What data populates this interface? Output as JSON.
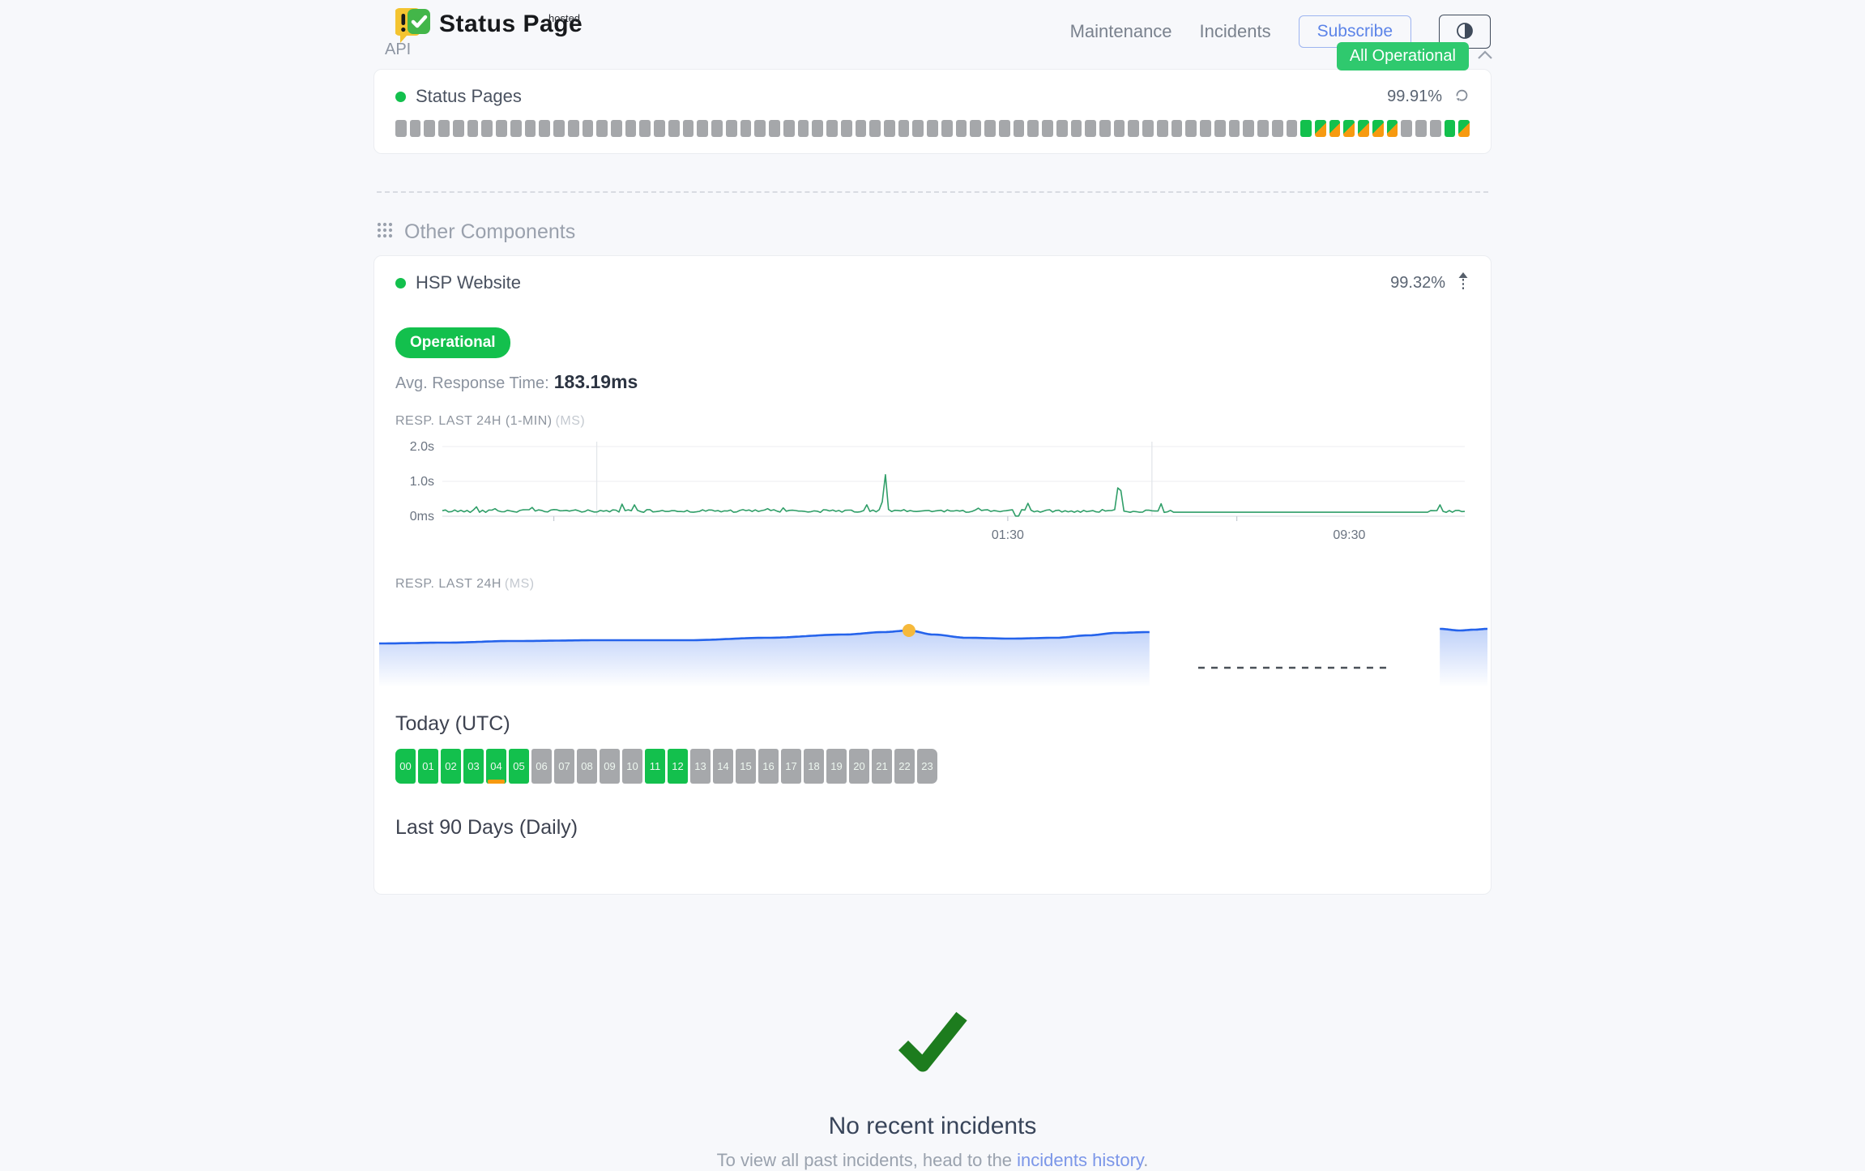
{
  "header": {
    "logo_title": "Status Page",
    "logo_superscript": "hosted",
    "nav": [
      {
        "label": "Maintenance"
      },
      {
        "label": "Incidents"
      }
    ],
    "subscribe_label": "Subscribe",
    "status_badge": "All Operational"
  },
  "status_legend": {
    "u": "operational",
    "d": "degraded",
    "n": "no-data"
  },
  "api_section": {
    "title": "API",
    "component": {
      "name": "Status Pages",
      "uptime": "99.91%",
      "bars": [
        "n",
        "n",
        "n",
        "n",
        "n",
        "n",
        "n",
        "n",
        "n",
        "n",
        "n",
        "n",
        "n",
        "n",
        "n",
        "n",
        "n",
        "n",
        "n",
        "n",
        "n",
        "n",
        "n",
        "n",
        "n",
        "n",
        "n",
        "n",
        "n",
        "n",
        "n",
        "n",
        "n",
        "n",
        "n",
        "n",
        "n",
        "n",
        "n",
        "n",
        "n",
        "n",
        "n",
        "n",
        "n",
        "n",
        "n",
        "n",
        "n",
        "n",
        "n",
        "n",
        "n",
        "n",
        "n",
        "n",
        "n",
        "n",
        "n",
        "n",
        "n",
        "n",
        "n",
        "u",
        "d",
        "d",
        "d",
        "d",
        "d",
        "d",
        "n",
        "n",
        "n",
        "u",
        "d"
      ]
    }
  },
  "other_components": {
    "title": "Other Components",
    "component": {
      "name": "HSP Website",
      "uptime": "99.32%",
      "status_pill": "Operational",
      "avg_response_label": "Avg. Response Time:",
      "avg_response_value": "183.19ms",
      "chart1_label": "RESP. LAST 24H (1-MIN)",
      "chart1_unit": "(MS)",
      "chart2_label": "RESP. LAST 24H",
      "chart2_unit": "(MS)",
      "today": {
        "title": "Today (UTC)",
        "hours": [
          {
            "label": "00",
            "status": "u"
          },
          {
            "label": "01",
            "status": "u"
          },
          {
            "label": "02",
            "status": "u"
          },
          {
            "label": "03",
            "status": "u"
          },
          {
            "label": "04",
            "status": "u",
            "marker": "d"
          },
          {
            "label": "05",
            "status": "u"
          },
          {
            "label": "06",
            "status": "n"
          },
          {
            "label": "07",
            "status": "n"
          },
          {
            "label": "08",
            "status": "n"
          },
          {
            "label": "09",
            "status": "n"
          },
          {
            "label": "10",
            "status": "n"
          },
          {
            "label": "11",
            "status": "u"
          },
          {
            "label": "12",
            "status": "u"
          },
          {
            "label": "13",
            "status": "n"
          },
          {
            "label": "14",
            "status": "n"
          },
          {
            "label": "15",
            "status": "n"
          },
          {
            "label": "16",
            "status": "n"
          },
          {
            "label": "17",
            "status": "n"
          },
          {
            "label": "18",
            "status": "n"
          },
          {
            "label": "19",
            "status": "n"
          },
          {
            "label": "20",
            "status": "n"
          },
          {
            "label": "21",
            "status": "n"
          },
          {
            "label": "22",
            "status": "n"
          },
          {
            "label": "23",
            "status": "n"
          }
        ]
      },
      "last90": {
        "title": "Last 90 Days (Daily)",
        "days": [
          "n",
          "n",
          "n",
          "n",
          "n",
          "n",
          "n",
          "n",
          "n",
          "n",
          "n",
          "n",
          "n",
          "n",
          "n",
          "n",
          "n",
          "n",
          "n",
          "n",
          "n",
          "n",
          "n",
          "n",
          "u",
          "u",
          "u",
          "u",
          "u",
          "u",
          "u",
          "u",
          "u",
          "u",
          "u",
          "u",
          "u",
          "u",
          "u",
          "u",
          "d",
          "u",
          "d",
          "d",
          "u",
          "d",
          "d",
          "d",
          "d",
          "d",
          "d",
          "d",
          "u",
          "d",
          "u",
          "u",
          "d",
          "d",
          "d",
          "d",
          "d",
          "d",
          "u",
          "u",
          "d",
          "d",
          "d",
          "d",
          "d",
          "d",
          "d",
          "d",
          "d",
          "d",
          "u",
          "u",
          "u",
          "d",
          "u",
          "d",
          "d",
          "d",
          "d",
          "d",
          "u",
          "n",
          "n",
          "n",
          "u",
          "d"
        ]
      }
    }
  },
  "incidents": {
    "title": "No recent incidents",
    "subtext_prefix": "To view all past incidents, head to the ",
    "link_text": "incidents history",
    "subtext_suffix": "."
  },
  "chart_data": [
    {
      "id": "resp_last_24h_1min",
      "type": "line",
      "title": "RESP. LAST 24H (1-MIN) (MS)",
      "line_color": "#2f9e68",
      "ylim_ms": [
        0,
        2000
      ],
      "ytick_labels": [
        "2.0s",
        "1.0s",
        "0ms"
      ],
      "xtick_labels": [
        {
          "label": "01:30",
          "pos": 0.553
        },
        {
          "label": "09:30",
          "pos": 0.887
        }
      ],
      "vgrid_pos": [
        0.151,
        0.694
      ],
      "tick_pos": [
        0.109,
        0.553,
        0.777
      ],
      "baseline_ms": 150,
      "noise_ms": 80,
      "spikes": [
        {
          "pos": 0.433,
          "ms": 1300
        },
        {
          "pos": 0.662,
          "ms": 1250
        }
      ],
      "dip": {
        "pos": 0.563,
        "ms": 5
      },
      "flat_segment": {
        "from": 0.713,
        "to": 0.965,
        "ms": 115
      }
    },
    {
      "id": "resp_last_24h",
      "type": "area",
      "title": "RESP. LAST 24H (MS)",
      "line_color": "#2563eb",
      "fill_color": "#2563eb",
      "marker": {
        "pos": 0.478,
        "y": 42,
        "color": "#f6b93b"
      },
      "gap": {
        "from": 0.739,
        "to": 0.91,
        "y": 88
      },
      "segments": [
        {
          "points": [
            [
              0,
              58
            ],
            [
              0.06,
              57
            ],
            [
              0.12,
              55
            ],
            [
              0.2,
              54
            ],
            [
              0.28,
              54
            ],
            [
              0.35,
              51
            ],
            [
              0.42,
              47
            ],
            [
              0.455,
              44
            ],
            [
              0.478,
              42
            ],
            [
              0.5,
              47
            ],
            [
              0.53,
              51
            ],
            [
              0.57,
              52
            ],
            [
              0.61,
              51
            ],
            [
              0.64,
              48
            ],
            [
              0.665,
              45
            ],
            [
              0.695,
              44
            ]
          ]
        },
        {
          "points": [
            [
              0.957,
              40
            ],
            [
              0.975,
              42
            ],
            [
              0.988,
              41
            ],
            [
              1,
              40
            ]
          ]
        }
      ]
    }
  ],
  "colors": {
    "operational_green": "#13c04d",
    "degraded_orange": "#f79a10",
    "nodata_gray": "#a5a7aa",
    "badge_green": "#2fc96e",
    "chart1_line": "#2f9e68",
    "chart2_line": "#2563eb",
    "marker_yellow": "#f6b93b",
    "link_blue": "#7b96e8",
    "check_green": "#1d7c1e"
  }
}
